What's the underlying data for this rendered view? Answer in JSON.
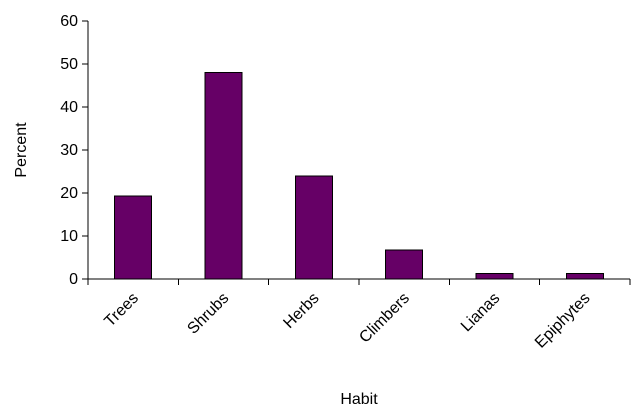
{
  "chart_data": {
    "type": "bar",
    "categories": [
      "Trees",
      "Shrubs",
      "Herbs",
      "Climbers",
      "Lianas",
      "Epiphytes"
    ],
    "values": [
      19.3,
      48,
      24,
      6.7,
      1.3,
      1.3
    ],
    "xlabel": "Habit",
    "ylabel": "Percent",
    "ylim": [
      0,
      60
    ],
    "yticks": [
      "0",
      "10",
      "20",
      "30",
      "40",
      "50",
      "60"
    ],
    "grid": false,
    "legend": "none",
    "colors": {
      "bar": "#660066",
      "axis": "#000000"
    }
  }
}
